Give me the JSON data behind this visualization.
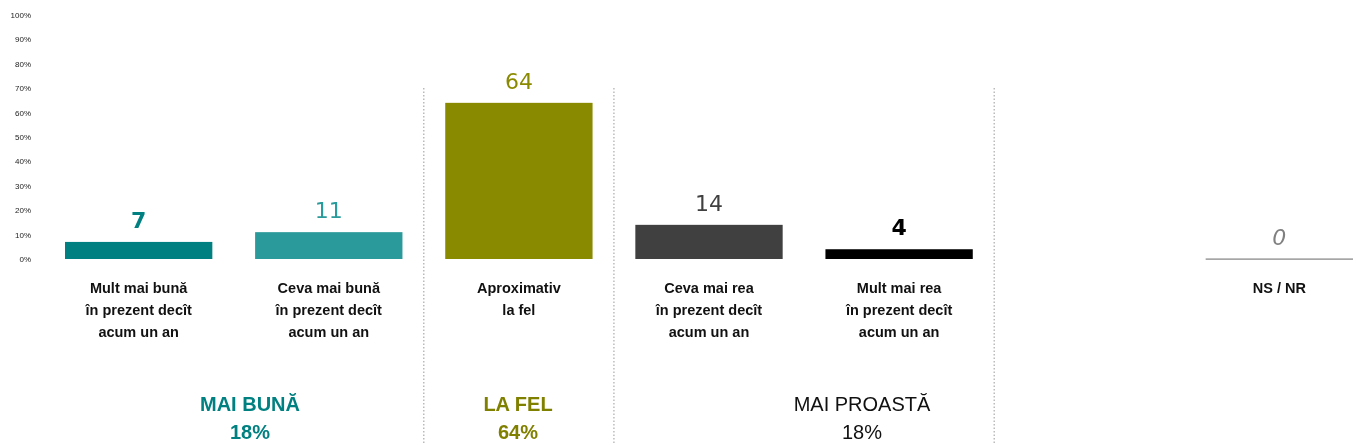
{
  "chart_data": {
    "type": "bar",
    "categories": [
      "Mult mai bună\nîn prezent decît\nacum un an",
      "Ceva mai bună\nîn prezent decît\nacum un an",
      "Aproximativ\nla fel",
      "Ceva mai rea\nîn prezent decît\nacum un an",
      "Mult mai rea\nîn prezent decît\nacum un an",
      null,
      "NS / NR"
    ],
    "values": [
      7,
      11,
      64,
      14,
      4,
      null,
      0
    ],
    "colors": [
      "#008080",
      "#2a9a9a",
      "#8a8a00",
      "#404040",
      "#000000",
      "#ffffff",
      "#808080"
    ],
    "ylim": [
      0,
      100
    ],
    "yticks": [
      {
        "value": 0,
        "label": "0%"
      },
      {
        "value": 10,
        "label": "10%"
      },
      {
        "value": 20,
        "label": "20%"
      },
      {
        "value": 30,
        "label": "30%"
      },
      {
        "value": 40,
        "label": "40%"
      },
      {
        "value": 50,
        "label": "50%"
      },
      {
        "value": 60,
        "label": "60%"
      },
      {
        "value": 70,
        "label": "70%"
      },
      {
        "value": 80,
        "label": "80%"
      },
      {
        "value": 90,
        "label": "90%"
      },
      {
        "value": 100,
        "label": "100%"
      }
    ],
    "data_labels": true,
    "grid": false,
    "annotations": [
      "MAI BUNĂ\n18%",
      "LA FEL\n64%",
      "MAI PROASTĂ\n18%"
    ]
  }
}
